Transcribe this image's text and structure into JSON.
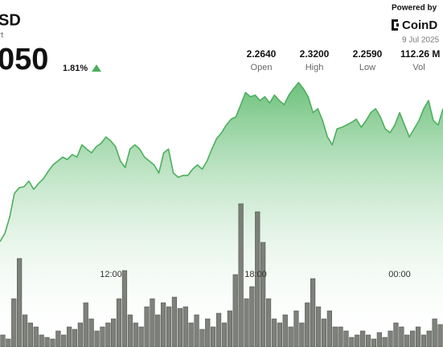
{
  "header": {
    "pair": "SD",
    "subtitle": "rt",
    "price": "050",
    "change": "1.81%"
  },
  "stats": [
    {
      "value": "2.2640",
      "label": "Open"
    },
    {
      "value": "2.3200",
      "label": "High"
    },
    {
      "value": "2.2590",
      "label": "Low"
    },
    {
      "value": "112.26 M",
      "label": "Vol"
    }
  ],
  "brand": {
    "powered": "Powered by",
    "logo": "CoinD",
    "date": "9 Jul 2025"
  },
  "chart_data": {
    "type": "line",
    "price": {
      "color": "#4caf5e",
      "values": [
        2.2592,
        2.2623,
        2.2685,
        2.2777,
        2.2798,
        2.2802,
        2.2823,
        2.2792,
        2.2814,
        2.2832,
        2.286,
        2.2885,
        2.29,
        2.2915,
        2.2906,
        2.2925,
        2.2915,
        2.2962,
        2.2946,
        2.2931,
        2.2955,
        2.2968,
        2.2992,
        2.2977,
        2.2955,
        2.29,
        2.2875,
        2.2946,
        2.2962,
        2.2946,
        2.2915,
        2.29,
        2.2885,
        2.2854,
        2.2931,
        2.2946,
        2.2854,
        2.2838,
        2.2845,
        2.2845,
        2.2869,
        2.2885,
        2.2869,
        2.29,
        2.2946,
        2.2986,
        2.3008,
        2.3038,
        2.306,
        2.3069,
        2.3115,
        2.3162,
        2.3146,
        2.3152,
        2.3131,
        2.3146,
        2.3122,
        2.3152,
        2.3131,
        2.3115,
        2.3152,
        2.3177,
        2.32,
        2.3177,
        2.3146,
        2.3085,
        2.31,
        2.3054,
        2.2992,
        2.2962,
        2.3023,
        2.3029,
        2.3038,
        2.3048,
        2.306,
        2.3029,
        2.3054,
        2.3085,
        2.31,
        2.3069,
        2.3023,
        2.3008,
        2.3038,
        2.3085,
        2.3038,
        2.2992,
        2.3023,
        2.3054,
        2.31,
        2.3131,
        2.3054,
        2.3038,
        2.31
      ]
    },
    "ylim": [
      2.25,
      2.33
    ],
    "volume": {
      "color": "#676b64",
      "values": [
        15,
        10,
        60,
        110,
        40,
        30,
        25,
        15,
        12,
        10,
        20,
        15,
        25,
        22,
        30,
        55,
        35,
        20,
        25,
        30,
        35,
        60,
        95,
        40,
        30,
        25,
        50,
        60,
        40,
        55,
        50,
        62,
        48,
        50,
        30,
        40,
        22,
        35,
        25,
        42,
        30,
        45,
        90,
        178,
        60,
        75,
        168,
        130,
        60,
        35,
        30,
        40,
        25,
        45,
        30,
        55,
        85,
        50,
        35,
        45,
        25,
        25,
        20,
        12,
        15,
        20,
        15,
        10,
        18,
        12,
        20,
        30,
        25,
        15,
        20,
        25,
        15,
        20,
        35,
        28
      ]
    },
    "y2lim": [
      0,
      200
    ],
    "xtick_labels": [
      "12:00",
      "18:00",
      "00:00"
    ]
  }
}
